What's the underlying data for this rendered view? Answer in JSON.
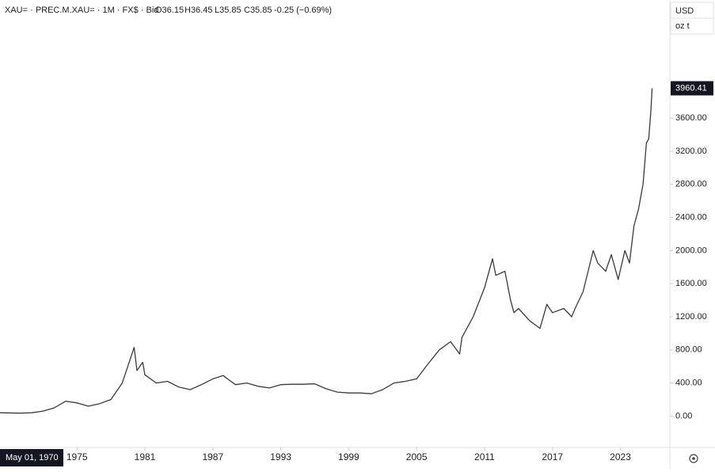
{
  "chart_data": {
    "type": "line",
    "header": {
      "symbol": "XAU= · PREC.M.XAU= · 1M · FX$ · Bid",
      "open": "O36.15",
      "high": "H36.45",
      "low": "L35.85",
      "close": "C35.85",
      "change": "-0.25 (−0.69%)"
    },
    "currency": "USD",
    "unit": "oz t",
    "cursor_label": "May 01, 1970",
    "x": [
      1968.2,
      1970,
      1971,
      1972,
      1973,
      1974,
      1975,
      1976,
      1977,
      1978,
      1979,
      1980.05,
      1980.3,
      1980.8,
      1981,
      1982,
      1983,
      1984,
      1985,
      1986,
      1987,
      1987.9,
      1988.5,
      1989,
      1990,
      1991,
      1992,
      1993,
      1994,
      1995,
      1996,
      1997,
      1998,
      1999,
      2000,
      2001,
      2002,
      2003,
      2004,
      2005,
      2006,
      2007,
      2008,
      2008.8,
      2009,
      2010,
      2011,
      2011.7,
      2012,
      2012.8,
      2013.3,
      2013.6,
      2014,
      2015,
      2015.9,
      2016.5,
      2017,
      2018,
      2018.7,
      2019,
      2019.7,
      2020.6,
      2021,
      2021.7,
      2022.2,
      2022.8,
      2023.4,
      2023.8,
      2024.2,
      2024.6,
      2025,
      2025.3,
      2025.5,
      2025.7,
      2025.8
    ],
    "series": [
      {
        "name": "XAU=",
        "color": "#3a3a3a",
        "values": [
          40,
          36,
          40,
          60,
          100,
          180,
          160,
          120,
          150,
          200,
          400,
          830,
          550,
          650,
          500,
          400,
          420,
          350,
          320,
          380,
          450,
          490,
          430,
          380,
          400,
          360,
          340,
          380,
          385,
          385,
          390,
          330,
          290,
          280,
          280,
          270,
          320,
          400,
          420,
          450,
          630,
          800,
          900,
          750,
          950,
          1200,
          1550,
          1900,
          1700,
          1750,
          1400,
          1250,
          1300,
          1150,
          1060,
          1350,
          1250,
          1300,
          1200,
          1300,
          1500,
          2000,
          1850,
          1750,
          1950,
          1650,
          2000,
          1850,
          2300,
          2500,
          2800,
          3300,
          3350,
          3700,
          3960.41
        ]
      }
    ],
    "xlim": [
      1968.2,
      2027.3
    ],
    "ylim": [
      -350,
      4740
    ],
    "xticks": [
      1975,
      1981,
      1987,
      1993,
      1999,
      2005,
      2011,
      2017,
      2023
    ],
    "yticks": [
      {
        "value": 0,
        "label": "0.00"
      },
      {
        "value": 400,
        "label": "400.00"
      },
      {
        "value": 800,
        "label": "800.00"
      },
      {
        "value": 1200,
        "label": "1200.00"
      },
      {
        "value": 1600,
        "label": "1600.00"
      },
      {
        "value": 2000,
        "label": "2000.00"
      },
      {
        "value": 2400,
        "label": "2400.00"
      },
      {
        "value": 2800,
        "label": "2800.00"
      },
      {
        "value": 3200,
        "label": "3200.00"
      },
      {
        "value": 3600,
        "label": "3600.00"
      }
    ]
  }
}
